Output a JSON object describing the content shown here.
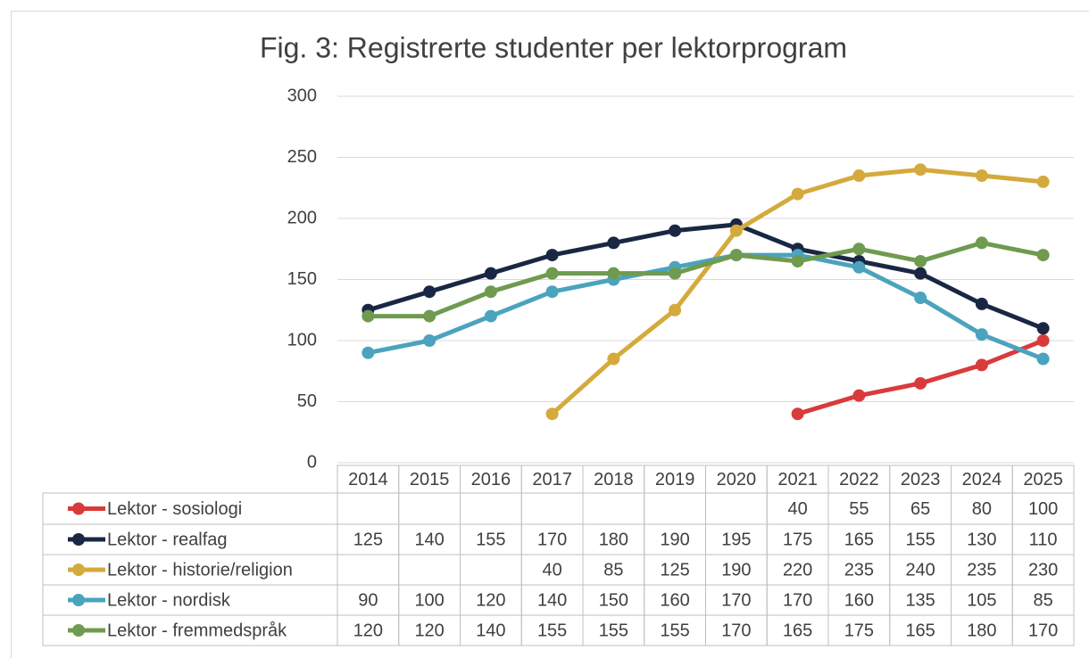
{
  "chart_data": {
    "type": "line",
    "title": "Fig. 3: Registrerte studenter per lektorprogram",
    "categories": [
      "2014",
      "2015",
      "2016",
      "2017",
      "2018",
      "2019",
      "2020",
      "2021",
      "2022",
      "2023",
      "2024",
      "2025"
    ],
    "series": [
      {
        "name": "Lektor - sosiologi",
        "color": "#d93b3b",
        "values": [
          null,
          null,
          null,
          null,
          null,
          null,
          null,
          40,
          55,
          65,
          80,
          100
        ]
      },
      {
        "name": "Lektor - realfag",
        "color": "#1a2744",
        "values": [
          125,
          140,
          155,
          170,
          180,
          190,
          195,
          175,
          165,
          155,
          130,
          110
        ]
      },
      {
        "name": "Lektor - historie/religion",
        "color": "#d4aa3c",
        "values": [
          null,
          null,
          null,
          40,
          85,
          125,
          190,
          220,
          235,
          240,
          235,
          230
        ]
      },
      {
        "name": "Lektor - nordisk",
        "color": "#4ba3bd",
        "values": [
          90,
          100,
          120,
          140,
          150,
          160,
          170,
          170,
          160,
          135,
          105,
          85
        ]
      },
      {
        "name": "Lektor - fremmedspråk",
        "color": "#6f9a50",
        "values": [
          120,
          120,
          140,
          155,
          155,
          155,
          170,
          165,
          175,
          165,
          180,
          170
        ]
      }
    ],
    "ylim": [
      0,
      300
    ],
    "yticks": [
      0,
      50,
      100,
      150,
      200,
      250,
      300
    ],
    "grid": true,
    "data_table": true
  }
}
